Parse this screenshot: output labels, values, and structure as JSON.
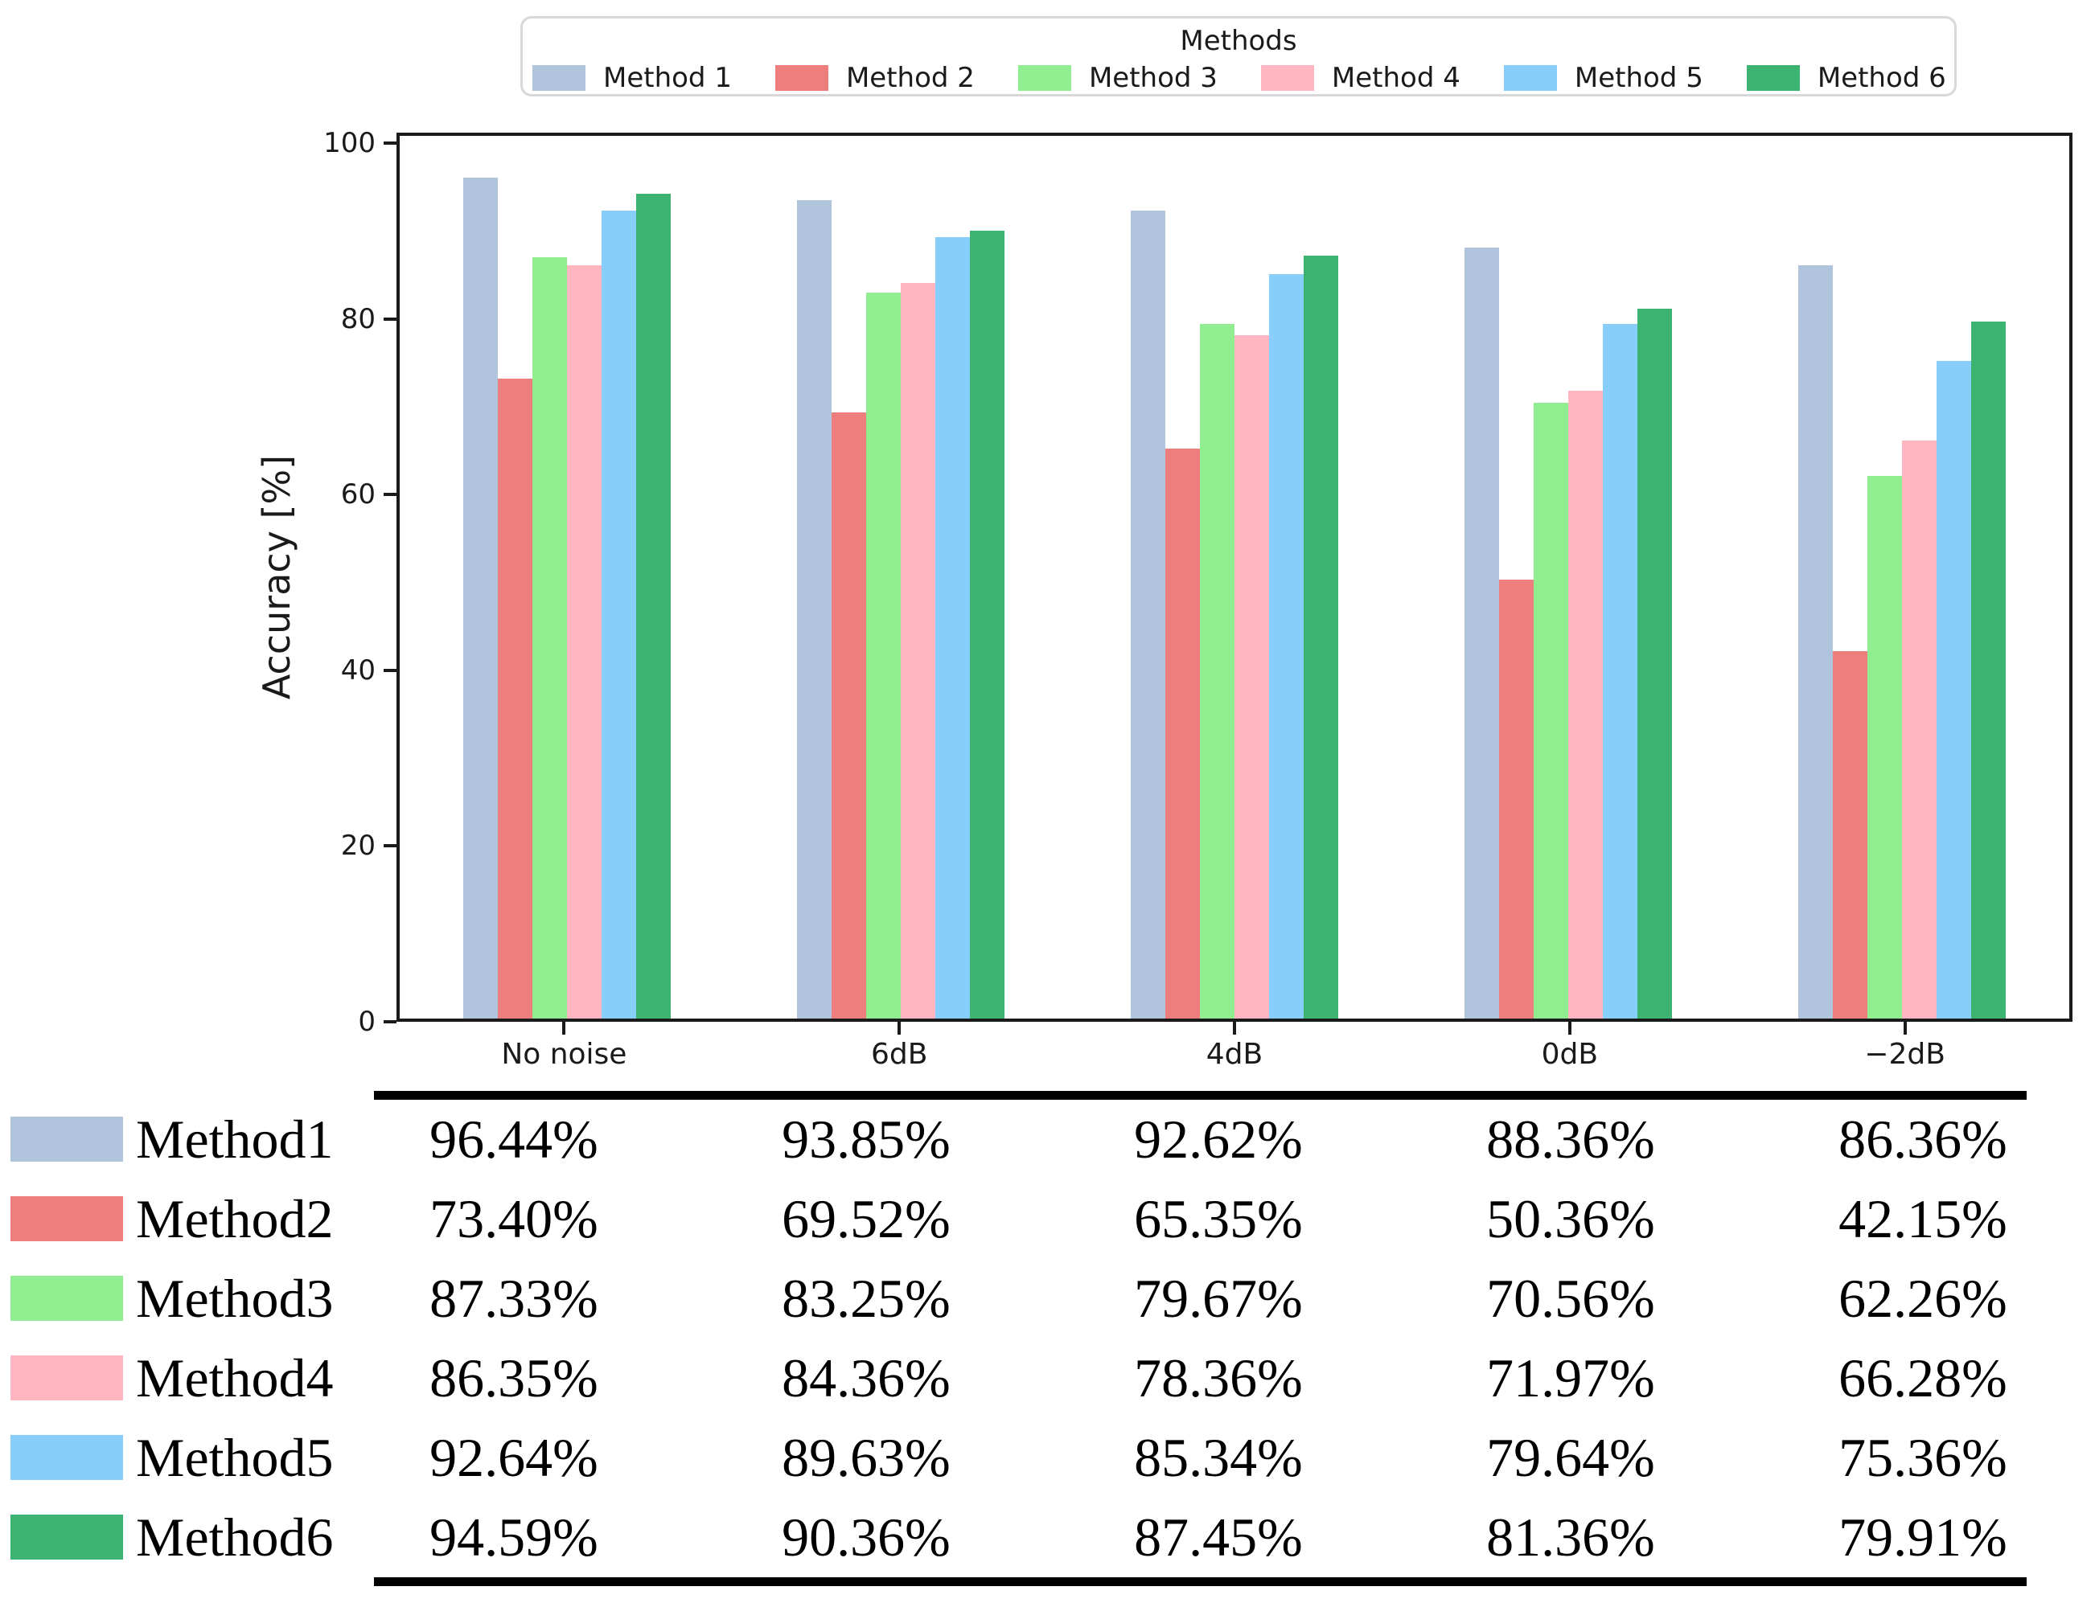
{
  "legend": {
    "title": "Methods",
    "items": [
      {
        "label": "Method 1",
        "color": "#b0c4de"
      },
      {
        "label": "Method 2",
        "color": "#ee7d7d"
      },
      {
        "label": "Method 3",
        "color": "#90ee90"
      },
      {
        "label": "Method 4",
        "color": "#ffb6c1"
      },
      {
        "label": "Method 5",
        "color": "#87cefa"
      },
      {
        "label": "Method 6",
        "color": "#3cb371"
      }
    ]
  },
  "chart_data": {
    "type": "bar",
    "title": "",
    "categories": [
      "No noise",
      "6dB",
      "4dB",
      "0dB",
      "−2dB"
    ],
    "series": [
      {
        "name": "Method 1",
        "color": "#b0c4de",
        "values": [
          96.44,
          93.85,
          92.62,
          88.36,
          86.36
        ]
      },
      {
        "name": "Method 2",
        "color": "#ee7d7d",
        "values": [
          73.4,
          69.52,
          65.35,
          50.36,
          42.15
        ]
      },
      {
        "name": "Method 3",
        "color": "#90ee90",
        "values": [
          87.33,
          83.25,
          79.67,
          70.56,
          62.26
        ]
      },
      {
        "name": "Method 4",
        "color": "#ffb6c1",
        "values": [
          86.35,
          84.36,
          78.36,
          71.97,
          66.28
        ]
      },
      {
        "name": "Method 5",
        "color": "#87cefa",
        "values": [
          92.64,
          89.63,
          85.34,
          79.64,
          75.36
        ]
      },
      {
        "name": "Method 6",
        "color": "#3cb371",
        "values": [
          94.59,
          90.36,
          87.45,
          81.36,
          79.91
        ]
      }
    ],
    "xlabel": "",
    "ylabel": "Accuracy [%]",
    "yticks": [
      0,
      20,
      40,
      60,
      80,
      100
    ],
    "ylim": [
      0,
      101.2
    ],
    "grid": false,
    "legend_position": "top",
    "legend_title": "Methods"
  },
  "table": {
    "rows": [
      {
        "label": "Method1",
        "color": "#b0c4de",
        "values": [
          "96.44%",
          "93.85%",
          "92.62%",
          "88.36%",
          "86.36%"
        ]
      },
      {
        "label": "Method2",
        "color": "#ee7d7d",
        "values": [
          "73.40%",
          "69.52%",
          "65.35%",
          "50.36%",
          "42.15%"
        ]
      },
      {
        "label": "Method3",
        "color": "#90ee90",
        "values": [
          "87.33%",
          "83.25%",
          "79.67%",
          "70.56%",
          "62.26%"
        ]
      },
      {
        "label": "Method4",
        "color": "#ffb6c1",
        "values": [
          "86.35%",
          "84.36%",
          "78.36%",
          "71.97%",
          "66.28%"
        ]
      },
      {
        "label": "Method5",
        "color": "#87cefa",
        "values": [
          "92.64%",
          "89.63%",
          "85.34%",
          "79.64%",
          "75.36%"
        ]
      },
      {
        "label": "Method6",
        "color": "#3cb371",
        "values": [
          "94.59%",
          "90.36%",
          "87.45%",
          "81.36%",
          "79.91%"
        ]
      }
    ]
  }
}
